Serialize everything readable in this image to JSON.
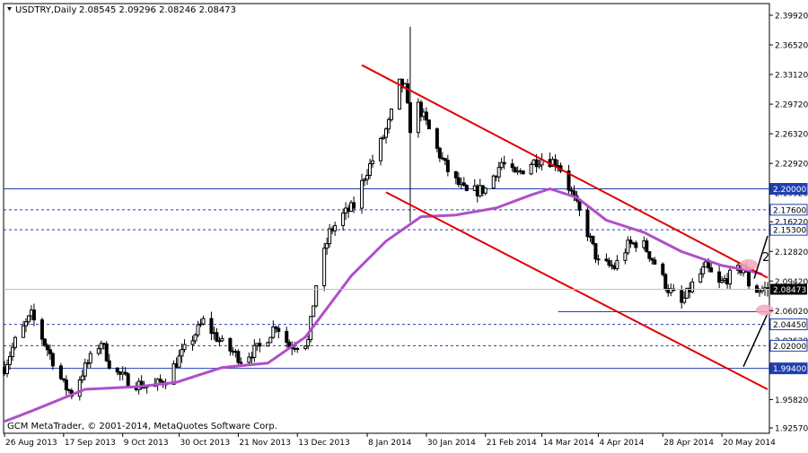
{
  "header": {
    "title": "USDTRY,Daily",
    "ohlc": "2.08545 2.09296 2.08246 2.08473"
  },
  "footer": {
    "copyright": "GCM MetaTrader, © 2001-2014, MetaQuotes Software Corp."
  },
  "colors": {
    "candle": "#000000",
    "moving_average": "#b04fc8",
    "channel": "#e00000",
    "horizontal_levels": "#1f3fb0",
    "highlight": "#f4a6c0",
    "current_price_bg": "#000000",
    "level_label_bg": "#1f3fb0"
  },
  "chart_data": {
    "type": "candlestick",
    "symbol": "USDTRY",
    "timeframe": "Daily",
    "ylim": [
      1.9257,
      2.3992
    ],
    "xlim": [
      "2013-08-26",
      "2014-06-06"
    ],
    "yticks": [
      "2.39920",
      "2.36520",
      "2.33120",
      "2.29720",
      "2.26320",
      "2.22920",
      "2.19520",
      "2.16220",
      "2.12820",
      "2.09420",
      "2.06020",
      "2.02620",
      "1.99220",
      "1.95820",
      "1.92570"
    ],
    "xticks": [
      "26 Aug 2013",
      "17 Sep 2013",
      "9 Oct 2013",
      "30 Oct 2013",
      "21 Nov 2013",
      "13 Dec 2013",
      "8 Jan 2014",
      "30 Jan 2014",
      "21 Feb 2014",
      "14 Mar 2014",
      "4 Apr 2014",
      "28 Apr 2014",
      "20 May 2014"
    ],
    "current_price": {
      "value": 2.08473,
      "label": "2.08473"
    },
    "horizontal_levels": [
      {
        "value": 2.2,
        "label": "2.20000",
        "style": "solid",
        "label_style": "filled"
      },
      {
        "value": 2.176,
        "label": "2.17600",
        "style": "dashed",
        "label_style": "outlined"
      },
      {
        "value": 2.153,
        "label": "2.15300",
        "style": "dashed",
        "label_style": "outlined"
      },
      {
        "value": 2.0445,
        "label": "2.04450",
        "style": "dashed",
        "label_style": "outlined"
      },
      {
        "value": 2.02,
        "label": "2.02000",
        "style": "dashed",
        "label_style": "outlined"
      },
      {
        "value": 1.994,
        "label": "1.99400",
        "style": "solid",
        "label_style": "filled"
      }
    ],
    "annotations": [
      {
        "type": "trendline",
        "color": "red",
        "from": {
          "date": "2014-01-06",
          "value": 2.342
        },
        "to": {
          "date": "2014-06-06",
          "value": 2.098
        }
      },
      {
        "type": "trendline",
        "color": "red",
        "from": {
          "date": "2014-01-15",
          "value": 2.196
        },
        "to": {
          "date": "2014-06-06",
          "value": 1.97
        }
      },
      {
        "type": "segment",
        "color": "blue",
        "from": {
          "date": "2014-03-20",
          "value": 2.059
        },
        "to": {
          "date": "2014-06-06",
          "value": 2.059
        }
      },
      {
        "type": "arrow",
        "color": "black",
        "from": {
          "date": "2014-05-28",
          "value": 1.996
        },
        "to": {
          "date": "2014-06-06",
          "value": 2.057
        }
      },
      {
        "type": "arrow",
        "color": "black",
        "from": {
          "date": "2014-06-01",
          "value": 2.097
        },
        "to": {
          "date": "2014-06-06",
          "value": 2.146
        }
      },
      {
        "type": "ellipse",
        "color": "pink",
        "center": {
          "date": "2014-05-30",
          "value": 2.113
        }
      },
      {
        "type": "ellipse",
        "color": "pink",
        "center": {
          "date": "2014-06-05",
          "value": 2.061
        }
      },
      {
        "type": "text",
        "text": "2",
        "at": {
          "date": "2014-06-04",
          "value": 2.117
        }
      }
    ],
    "moving_average_keypoints": [
      {
        "date": "2013-08-26",
        "value": 1.933
      },
      {
        "date": "2013-09-05",
        "value": 1.945
      },
      {
        "date": "2013-09-25",
        "value": 1.97
      },
      {
        "date": "2013-10-15",
        "value": 1.973
      },
      {
        "date": "2013-10-29",
        "value": 1.978
      },
      {
        "date": "2013-11-15",
        "value": 1.995
      },
      {
        "date": "2013-12-02",
        "value": 2.0
      },
      {
        "date": "2013-12-16",
        "value": 2.03
      },
      {
        "date": "2014-01-02",
        "value": 2.1
      },
      {
        "date": "2014-01-15",
        "value": 2.14
      },
      {
        "date": "2014-01-28",
        "value": 2.168
      },
      {
        "date": "2014-02-10",
        "value": 2.17
      },
      {
        "date": "2014-02-25",
        "value": 2.178
      },
      {
        "date": "2014-03-10",
        "value": 2.193
      },
      {
        "date": "2014-03-17",
        "value": 2.2
      },
      {
        "date": "2014-03-27",
        "value": 2.19
      },
      {
        "date": "2014-04-07",
        "value": 2.164
      },
      {
        "date": "2014-04-21",
        "value": 2.15
      },
      {
        "date": "2014-05-05",
        "value": 2.128
      },
      {
        "date": "2014-05-20",
        "value": 2.112
      },
      {
        "date": "2014-05-29",
        "value": 2.107
      },
      {
        "date": "2014-06-04",
        "value": 2.102
      }
    ],
    "price_keypoints": [
      {
        "date": "2013-08-26",
        "value": 1.995
      },
      {
        "date": "2013-08-30",
        "value": 2.025
      },
      {
        "date": "2013-09-05",
        "value": 2.055
      },
      {
        "date": "2013-09-12",
        "value": 2.01
      },
      {
        "date": "2013-09-17",
        "value": 1.975
      },
      {
        "date": "2013-09-20",
        "value": 1.965
      },
      {
        "date": "2013-09-25",
        "value": 1.995
      },
      {
        "date": "2013-10-01",
        "value": 2.025
      },
      {
        "date": "2013-10-05",
        "value": 1.992
      },
      {
        "date": "2013-10-12",
        "value": 1.978
      },
      {
        "date": "2013-10-20",
        "value": 1.972
      },
      {
        "date": "2013-10-25",
        "value": 1.982
      },
      {
        "date": "2013-11-01",
        "value": 2.015
      },
      {
        "date": "2013-11-08",
        "value": 2.048
      },
      {
        "date": "2013-11-15",
        "value": 2.022
      },
      {
        "date": "2013-11-22",
        "value": 2.005
      },
      {
        "date": "2013-11-30",
        "value": 2.02
      },
      {
        "date": "2013-12-05",
        "value": 2.045
      },
      {
        "date": "2013-12-10",
        "value": 2.02
      },
      {
        "date": "2013-12-17",
        "value": 2.025
      },
      {
        "date": "2013-12-20",
        "value": 2.09
      },
      {
        "date": "2013-12-25",
        "value": 2.15
      },
      {
        "date": "2013-12-30",
        "value": 2.17
      },
      {
        "date": "2014-01-03",
        "value": 2.18
      },
      {
        "date": "2014-01-07",
        "value": 2.215
      },
      {
        "date": "2014-01-12",
        "value": 2.245
      },
      {
        "date": "2014-01-16",
        "value": 2.275
      },
      {
        "date": "2014-01-20",
        "value": 2.32
      },
      {
        "date": "2014-01-22",
        "value": 2.315
      },
      {
        "date": "2014-01-24",
        "value": 2.27
      },
      {
        "date": "2014-01-27",
        "value": 2.295
      },
      {
        "date": "2014-01-30",
        "value": 2.275
      },
      {
        "date": "2014-02-03",
        "value": 2.245
      },
      {
        "date": "2014-02-08",
        "value": 2.215
      },
      {
        "date": "2014-02-14",
        "value": 2.195
      },
      {
        "date": "2014-02-21",
        "value": 2.2
      },
      {
        "date": "2014-02-27",
        "value": 2.23
      },
      {
        "date": "2014-03-04",
        "value": 2.215
      },
      {
        "date": "2014-03-10",
        "value": 2.23
      },
      {
        "date": "2014-03-14",
        "value": 2.235
      },
      {
        "date": "2014-03-20",
        "value": 2.23
      },
      {
        "date": "2014-03-25",
        "value": 2.195
      },
      {
        "date": "2014-03-31",
        "value": 2.15
      },
      {
        "date": "2014-04-04",
        "value": 2.115
      },
      {
        "date": "2014-04-10",
        "value": 2.11
      },
      {
        "date": "2014-04-15",
        "value": 2.135
      },
      {
        "date": "2014-04-20",
        "value": 2.14
      },
      {
        "date": "2014-04-25",
        "value": 2.115
      },
      {
        "date": "2014-04-30",
        "value": 2.085
      },
      {
        "date": "2014-05-05",
        "value": 2.068
      },
      {
        "date": "2014-05-09",
        "value": 2.09
      },
      {
        "date": "2014-05-14",
        "value": 2.11
      },
      {
        "date": "2014-05-19",
        "value": 2.09
      },
      {
        "date": "2014-05-23",
        "value": 2.1
      },
      {
        "date": "2014-05-28",
        "value": 2.11
      },
      {
        "date": "2014-05-31",
        "value": 2.082
      },
      {
        "date": "2014-06-03",
        "value": 2.08473
      }
    ],
    "notable_high": {
      "date": "2014-01-24",
      "high": 2.386,
      "low": 2.162
    }
  }
}
